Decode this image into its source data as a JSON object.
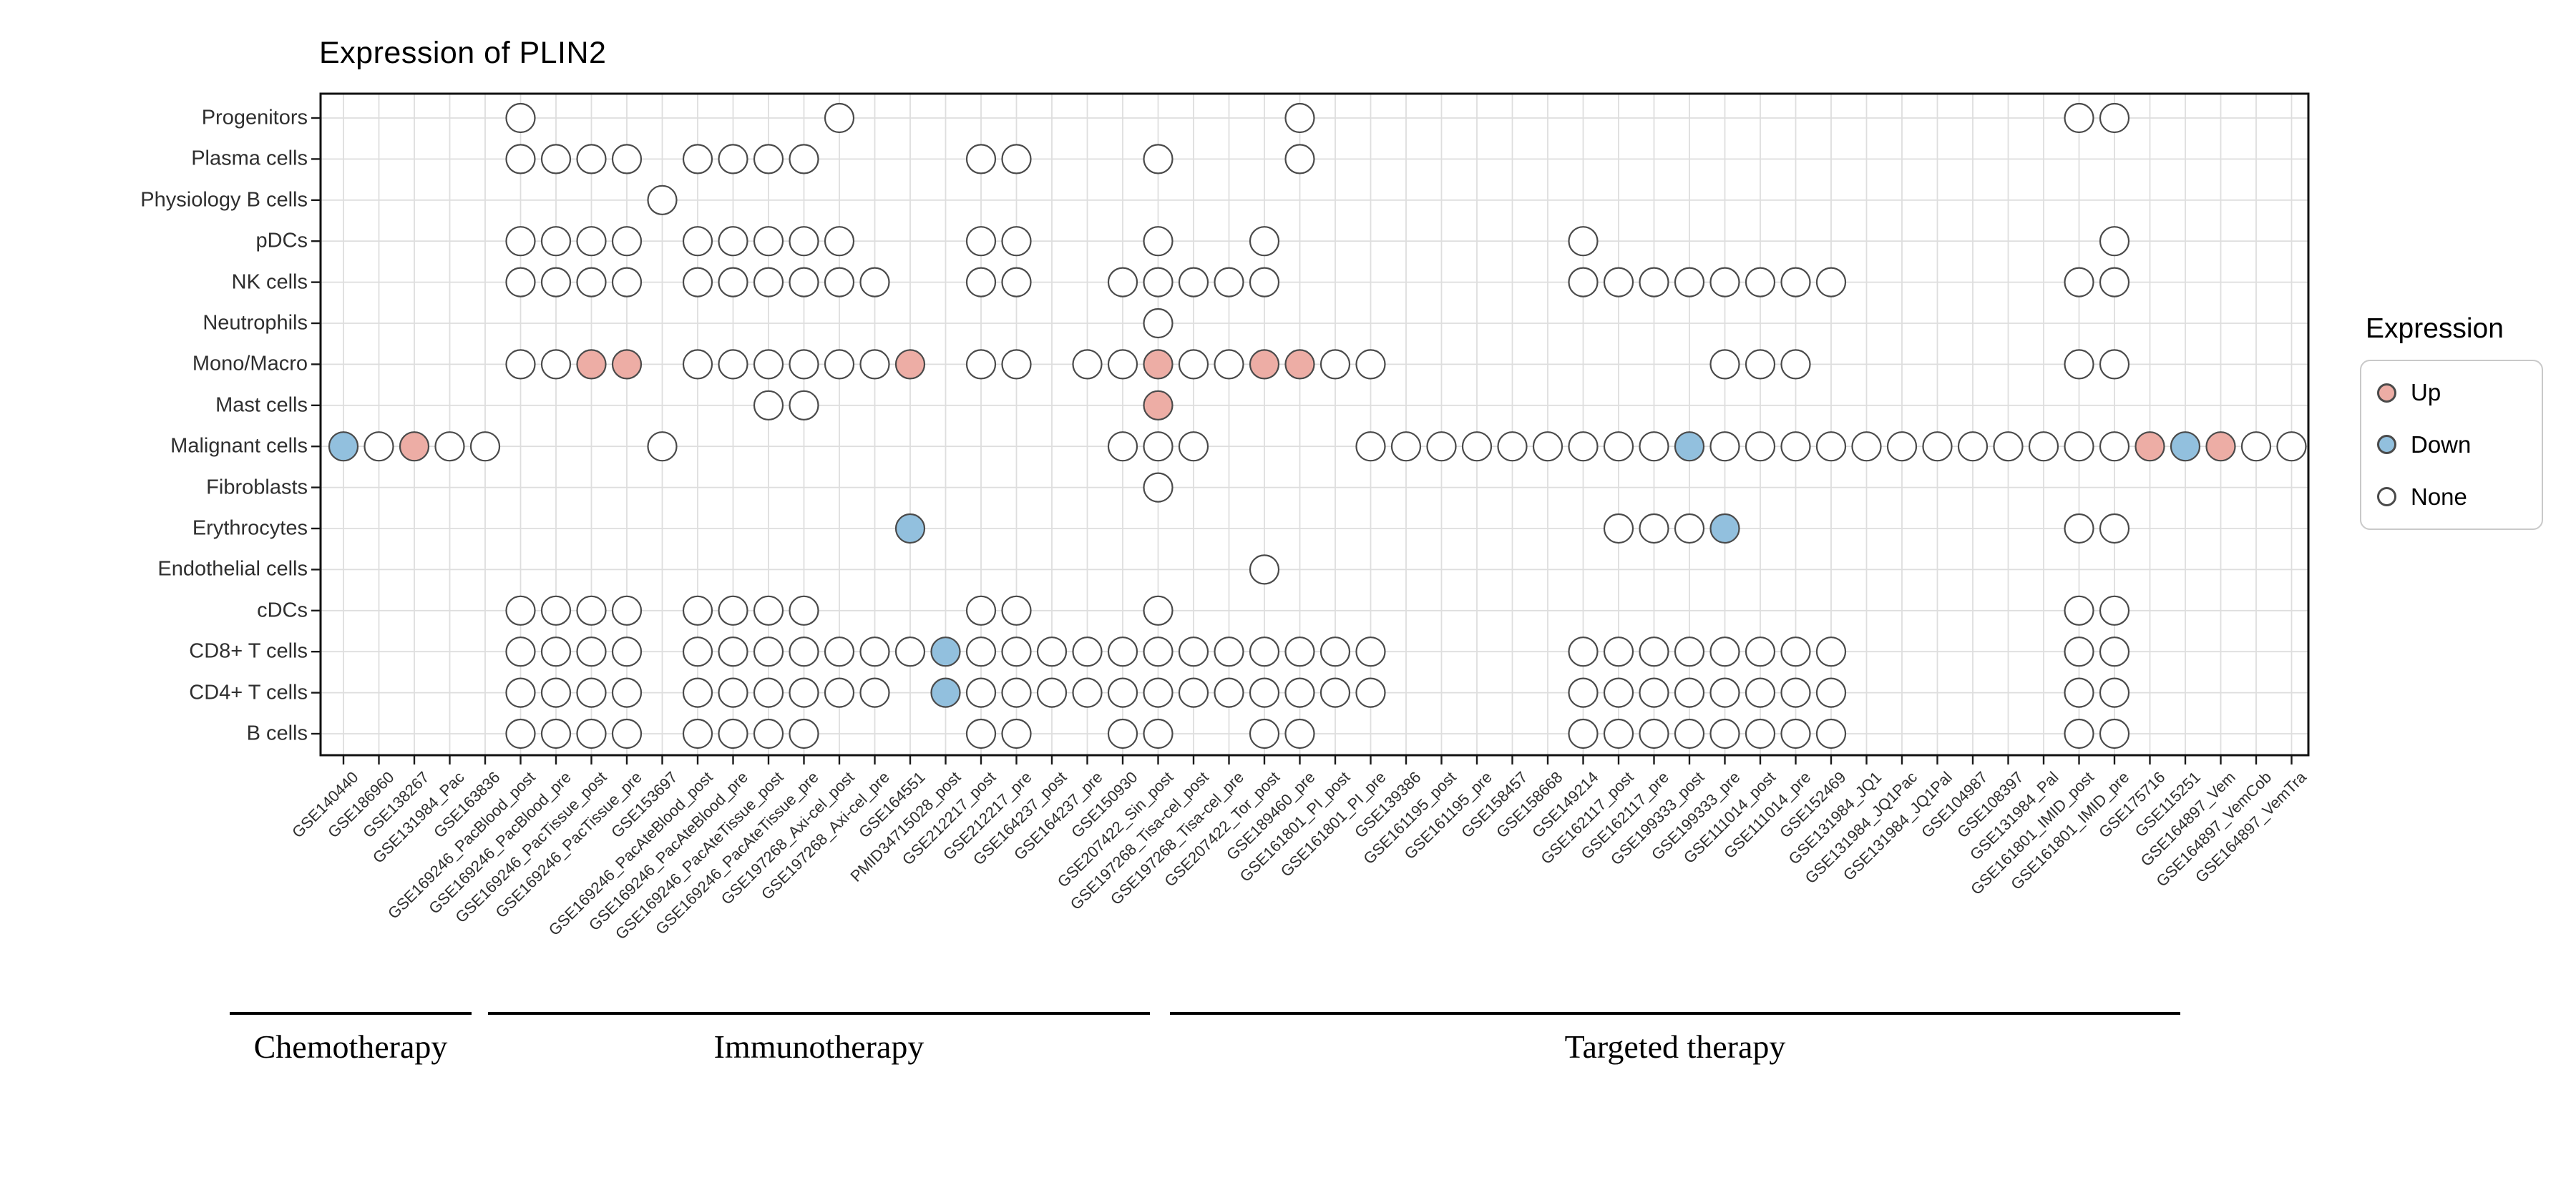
{
  "title": "Expression of PLIN2",
  "legend": {
    "title": "Expression",
    "items": [
      {
        "label": "Up",
        "color": "#EDADA5"
      },
      {
        "label": "Down",
        "color": "#92C0DE"
      },
      {
        "label": "None",
        "color": "#FFFFFF"
      }
    ]
  },
  "chart_data": {
    "type": "scatter",
    "subtype": "categorical-dot-matrix",
    "title": "Expression of PLIN2",
    "xlabel": "",
    "ylabel": "",
    "grid": true,
    "legend_position": "right",
    "legend_title": "Expression",
    "states": [
      "Up",
      "Down",
      "None"
    ],
    "x_categories": [
      "GSE140440",
      "GSE186960",
      "GSE138267",
      "GSE131984_Pac",
      "GSE163836",
      "GSE169246_PacBlood_post",
      "GSE169246_PacBlood_pre",
      "GSE169246_PacTissue_post",
      "GSE169246_PacTissue_pre",
      "GSE153697",
      "GSE169246_PacAteBlood_post",
      "GSE169246_PacAteBlood_pre",
      "GSE169246_PacAteTissue_post",
      "GSE169246_PacAteTissue_pre",
      "GSE197268_Axi-cel_post",
      "GSE197268_Axi-cel_pre",
      "GSE164551",
      "PMID34715028_post",
      "GSE212217_post",
      "GSE212217_pre",
      "GSE164237_post",
      "GSE164237_pre",
      "GSE150930",
      "GSE207422_Sin_post",
      "GSE197268_Tisa-cel_post",
      "GSE197268_Tisa-cel_pre",
      "GSE207422_Tor_post",
      "GSE189460_pre",
      "GSE161801_PI_post",
      "GSE161801_PI_pre",
      "GSE139386",
      "GSE161195_post",
      "GSE161195_pre",
      "GSE158457",
      "GSE158668",
      "GSE149214",
      "GSE162117_post",
      "GSE162117_pre",
      "GSE199333_post",
      "GSE199333_pre",
      "GSE111014_post",
      "GSE111014_pre",
      "GSE152469",
      "GSE131984_JQ1",
      "GSE131984_JQ1Pac",
      "GSE131984_JQ1Pal",
      "GSE104987",
      "GSE108397",
      "GSE131984_Pal",
      "GSE161801_IMID_post",
      "GSE161801_IMID_pre",
      "GSE175716",
      "GSE115251",
      "GSE164897_Vem",
      "GSE164897_VemCob",
      "GSE164897_VemTra"
    ],
    "y_categories": [
      "Progenitors",
      "Plasma cells",
      "Physiology B cells",
      "pDCs",
      "NK cells",
      "Neutrophils",
      "Mono/Macro",
      "Mast cells",
      "Malignant cells",
      "Fibroblasts",
      "Erythrocytes",
      "Endothelial cells",
      "cDCs",
      "CD8+ T cells",
      "CD4+ T cells",
      "B cells"
    ],
    "groups": [
      {
        "label": "Chemotherapy",
        "from": "GSE140440",
        "to": "GSE163836"
      },
      {
        "label": "Immunotherapy",
        "from": "GSE169246_PacBlood_post",
        "to": "GSE207422_Sin_post"
      },
      {
        "label": "Targeted therapy",
        "from": "GSE197268_Tisa-cel_post",
        "to": "GSE164897_VemTra"
      }
    ],
    "rows": [
      {
        "cell_type": "Progenitors",
        "None": [
          "GSE169246_PacBlood_post",
          "GSE197268_Axi-cel_post",
          "GSE189460_pre",
          "GSE161801_IMID_post",
          "GSE161801_IMID_pre"
        ],
        "Up": [],
        "Down": []
      },
      {
        "cell_type": "Plasma cells",
        "None": [
          "GSE169246_PacBlood_post",
          "GSE169246_PacBlood_pre",
          "GSE169246_PacTissue_post",
          "GSE169246_PacTissue_pre",
          "GSE169246_PacAteBlood_post",
          "GSE169246_PacAteBlood_pre",
          "GSE169246_PacAteTissue_post",
          "GSE169246_PacAteTissue_pre",
          "GSE212217_post",
          "GSE212217_pre",
          "GSE207422_Sin_post",
          "GSE189460_pre"
        ],
        "Up": [],
        "Down": []
      },
      {
        "cell_type": "Physiology B cells",
        "None": [
          "GSE153697"
        ],
        "Up": [],
        "Down": []
      },
      {
        "cell_type": "pDCs",
        "None": [
          "GSE169246_PacBlood_post",
          "GSE169246_PacBlood_pre",
          "GSE169246_PacTissue_post",
          "GSE169246_PacTissue_pre",
          "GSE169246_PacAteBlood_post",
          "GSE169246_PacAteBlood_pre",
          "GSE169246_PacAteTissue_post",
          "GSE169246_PacAteTissue_pre",
          "GSE197268_Axi-cel_post",
          "GSE212217_post",
          "GSE212217_pre",
          "GSE207422_Sin_post",
          "GSE207422_Tor_post",
          "GSE149214",
          "GSE161801_IMID_pre"
        ],
        "Up": [],
        "Down": []
      },
      {
        "cell_type": "NK cells",
        "None": [
          "GSE169246_PacBlood_post",
          "GSE169246_PacBlood_pre",
          "GSE169246_PacTissue_post",
          "GSE169246_PacTissue_pre",
          "GSE169246_PacAteBlood_post",
          "GSE169246_PacAteBlood_pre",
          "GSE169246_PacAteTissue_post",
          "GSE169246_PacAteTissue_pre",
          "GSE197268_Axi-cel_post",
          "GSE197268_Axi-cel_pre",
          "GSE212217_post",
          "GSE212217_pre",
          "GSE150930",
          "GSE207422_Sin_post",
          "GSE197268_Tisa-cel_post",
          "GSE197268_Tisa-cel_pre",
          "GSE207422_Tor_post",
          "GSE149214",
          "GSE162117_post",
          "GSE162117_pre",
          "GSE199333_post",
          "GSE199333_pre",
          "GSE111014_post",
          "GSE111014_pre",
          "GSE152469",
          "GSE161801_IMID_post",
          "GSE161801_IMID_pre"
        ],
        "Up": [],
        "Down": []
      },
      {
        "cell_type": "Neutrophils",
        "None": [
          "GSE207422_Sin_post"
        ],
        "Up": [],
        "Down": []
      },
      {
        "cell_type": "Mono/Macro",
        "None": [
          "GSE169246_PacBlood_post",
          "GSE169246_PacBlood_pre",
          "GSE169246_PacAteBlood_post",
          "GSE169246_PacAteBlood_pre",
          "GSE169246_PacAteTissue_post",
          "GSE169246_PacAteTissue_pre",
          "GSE197268_Axi-cel_post",
          "GSE197268_Axi-cel_pre",
          "GSE212217_post",
          "GSE212217_pre",
          "GSE164237_pre",
          "GSE150930",
          "GSE197268_Tisa-cel_post",
          "GSE197268_Tisa-cel_pre",
          "GSE161801_PI_post",
          "GSE161801_PI_pre",
          "GSE199333_pre",
          "GSE111014_post",
          "GSE111014_pre",
          "GSE161801_IMID_post",
          "GSE161801_IMID_pre"
        ],
        "Up": [
          "GSE169246_PacTissue_post",
          "GSE169246_PacTissue_pre",
          "GSE164551",
          "GSE207422_Sin_post",
          "GSE207422_Tor_post",
          "GSE189460_pre"
        ],
        "Down": []
      },
      {
        "cell_type": "Mast cells",
        "None": [
          "GSE169246_PacAteTissue_post",
          "GSE169246_PacAteTissue_pre"
        ],
        "Up": [
          "GSE207422_Sin_post"
        ],
        "Down": []
      },
      {
        "cell_type": "Malignant cells",
        "None": [
          "GSE186960",
          "GSE131984_Pac",
          "GSE163836",
          "GSE153697",
          "GSE150930",
          "GSE207422_Sin_post",
          "GSE197268_Tisa-cel_post",
          "GSE161801_PI_pre",
          "GSE139386",
          "GSE161195_post",
          "GSE161195_pre",
          "GSE158457",
          "GSE158668",
          "GSE149214",
          "GSE162117_post",
          "GSE162117_pre",
          "GSE199333_pre",
          "GSE111014_post",
          "GSE111014_pre",
          "GSE152469",
          "GSE131984_JQ1",
          "GSE131984_JQ1Pac",
          "GSE131984_JQ1Pal",
          "GSE104987",
          "GSE108397",
          "GSE131984_Pal",
          "GSE161801_IMID_post",
          "GSE161801_IMID_pre",
          "GSE164897_VemCob",
          "GSE164897_VemTra"
        ],
        "Up": [
          "GSE138267",
          "GSE175716",
          "GSE164897_Vem"
        ],
        "Down": [
          "GSE140440",
          "GSE199333_post",
          "GSE115251"
        ]
      },
      {
        "cell_type": "Fibroblasts",
        "None": [
          "GSE207422_Sin_post"
        ],
        "Up": [],
        "Down": []
      },
      {
        "cell_type": "Erythrocytes",
        "None": [
          "GSE162117_post",
          "GSE162117_pre",
          "GSE199333_post",
          "GSE161801_IMID_post",
          "GSE161801_IMID_pre"
        ],
        "Up": [],
        "Down": [
          "GSE164551",
          "GSE199333_pre"
        ]
      },
      {
        "cell_type": "Endothelial cells",
        "None": [
          "GSE207422_Tor_post"
        ],
        "Up": [],
        "Down": []
      },
      {
        "cell_type": "cDCs",
        "None": [
          "GSE169246_PacBlood_post",
          "GSE169246_PacBlood_pre",
          "GSE169246_PacTissue_post",
          "GSE169246_PacTissue_pre",
          "GSE169246_PacAteBlood_post",
          "GSE169246_PacAteBlood_pre",
          "GSE169246_PacAteTissue_post",
          "GSE169246_PacAteTissue_pre",
          "GSE212217_post",
          "GSE212217_pre",
          "GSE207422_Sin_post",
          "GSE161801_IMID_post",
          "GSE161801_IMID_pre"
        ],
        "Up": [],
        "Down": []
      },
      {
        "cell_type": "CD8+ T cells",
        "None": [
          "GSE169246_PacBlood_post",
          "GSE169246_PacBlood_pre",
          "GSE169246_PacTissue_post",
          "GSE169246_PacTissue_pre",
          "GSE169246_PacAteBlood_post",
          "GSE169246_PacAteBlood_pre",
          "GSE169246_PacAteTissue_post",
          "GSE169246_PacAteTissue_pre",
          "GSE197268_Axi-cel_post",
          "GSE197268_Axi-cel_pre",
          "GSE164551",
          "GSE212217_post",
          "GSE212217_pre",
          "GSE164237_post",
          "GSE164237_pre",
          "GSE150930",
          "GSE207422_Sin_post",
          "GSE197268_Tisa-cel_post",
          "GSE197268_Tisa-cel_pre",
          "GSE207422_Tor_post",
          "GSE189460_pre",
          "GSE161801_PI_post",
          "GSE161801_PI_pre",
          "GSE149214",
          "GSE162117_post",
          "GSE162117_pre",
          "GSE199333_post",
          "GSE199333_pre",
          "GSE111014_post",
          "GSE111014_pre",
          "GSE152469",
          "GSE161801_IMID_post",
          "GSE161801_IMID_pre"
        ],
        "Up": [],
        "Down": [
          "PMID34715028_post"
        ]
      },
      {
        "cell_type": "CD4+ T cells",
        "None": [
          "GSE169246_PacBlood_post",
          "GSE169246_PacBlood_pre",
          "GSE169246_PacTissue_post",
          "GSE169246_PacTissue_pre",
          "GSE169246_PacAteBlood_post",
          "GSE169246_PacAteBlood_pre",
          "GSE169246_PacAteTissue_post",
          "GSE169246_PacAteTissue_pre",
          "GSE197268_Axi-cel_post",
          "GSE197268_Axi-cel_pre",
          "GSE212217_post",
          "GSE212217_pre",
          "GSE164237_post",
          "GSE164237_pre",
          "GSE150930",
          "GSE207422_Sin_post",
          "GSE197268_Tisa-cel_post",
          "GSE197268_Tisa-cel_pre",
          "GSE207422_Tor_post",
          "GSE189460_pre",
          "GSE161801_PI_post",
          "GSE161801_PI_pre",
          "GSE149214",
          "GSE162117_post",
          "GSE162117_pre",
          "GSE199333_post",
          "GSE199333_pre",
          "GSE111014_post",
          "GSE111014_pre",
          "GSE152469",
          "GSE161801_IMID_post",
          "GSE161801_IMID_pre"
        ],
        "Up": [],
        "Down": [
          "PMID34715028_post"
        ]
      },
      {
        "cell_type": "B cells",
        "None": [
          "GSE169246_PacBlood_post",
          "GSE169246_PacBlood_pre",
          "GSE169246_PacTissue_post",
          "GSE169246_PacTissue_pre",
          "GSE169246_PacAteBlood_post",
          "GSE169246_PacAteBlood_pre",
          "GSE169246_PacAteTissue_post",
          "GSE169246_PacAteTissue_pre",
          "GSE212217_post",
          "GSE212217_pre",
          "GSE150930",
          "GSE207422_Sin_post",
          "GSE207422_Tor_post",
          "GSE189460_pre",
          "GSE149214",
          "GSE162117_post",
          "GSE162117_pre",
          "GSE199333_post",
          "GSE199333_pre",
          "GSE111014_post",
          "GSE111014_pre",
          "GSE152469",
          "GSE161801_IMID_post",
          "GSE161801_IMID_pre"
        ],
        "Up": [],
        "Down": []
      }
    ]
  }
}
